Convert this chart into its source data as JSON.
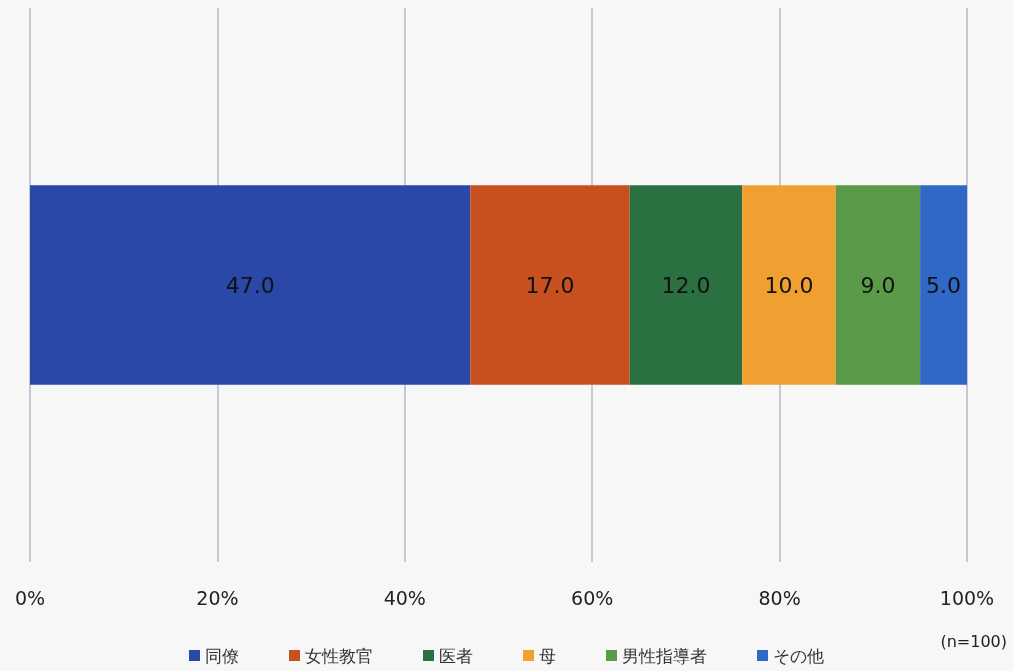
{
  "chart_data": {
    "type": "bar",
    "orientation": "horizontal",
    "stacked": true,
    "categories": [
      null
    ],
    "series": [
      {
        "name": "同僚",
        "color": "#2a48a8",
        "values": [
          47
        ],
        "value_labels": [
          "47.0"
        ]
      },
      {
        "name": "女性教官",
        "color": "#c8501e",
        "values": [
          17
        ],
        "value_labels": [
          "17.0"
        ]
      },
      {
        "name": "医者",
        "color": "#2a7040",
        "values": [
          12
        ],
        "value_labels": [
          "12.0"
        ]
      },
      {
        "name": "母",
        "color": "#f0a030",
        "values": [
          10
        ],
        "value_labels": [
          "10.0"
        ]
      },
      {
        "name": "男性指導者",
        "color": "#5a9a48",
        "values": [
          9
        ],
        "value_labels": [
          "9.0"
        ]
      },
      {
        "name": "その他",
        "color": "#3068c8",
        "values": [
          5
        ],
        "value_labels": [
          "5.0"
        ]
      }
    ],
    "xlim": [
      0,
      100
    ],
    "xticks": [
      {
        "value": 0,
        "label": "0%"
      },
      {
        "value": 20,
        "label": "20%"
      },
      {
        "value": 40,
        "label": "40%"
      },
      {
        "value": 60,
        "label": "60%"
      },
      {
        "value": 80,
        "label": "80%"
      },
      {
        "value": 100,
        "label": "100%"
      }
    ],
    "grid": "x",
    "legend": "bottom",
    "annotations": [
      "(n=100)"
    ]
  }
}
